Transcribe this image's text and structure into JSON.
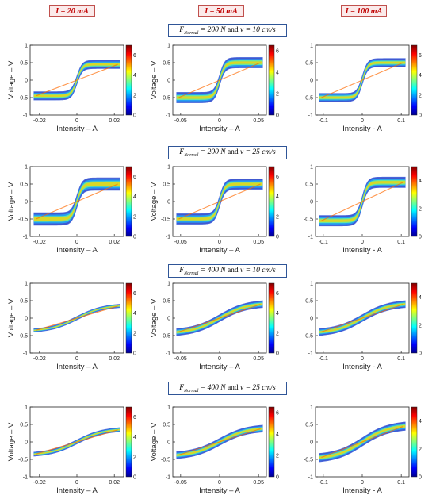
{
  "column_headers": [
    "I = 20 mA",
    "I = 50 mA",
    "I = 100 mA"
  ],
  "conditions": [
    {
      "label": "F",
      "sub": "Normal",
      "eq1": "= 200 N",
      "and": "and",
      "v_sym": "v",
      "eq2": "= 10 cm/s"
    },
    {
      "label": "F",
      "sub": "Normal",
      "eq1": "= 200 N",
      "and": "and",
      "v_sym": "v",
      "eq2": "= 25 cm/s"
    },
    {
      "label": "F",
      "sub": "Normal",
      "eq1": "= 400 N",
      "and": "and",
      "v_sym": "v",
      "eq2": "= 10 cm/s"
    },
    {
      "label": "F",
      "sub": "Normal",
      "eq1": "= 400 N",
      "and": "and",
      "v_sym": "v",
      "eq2": "= 25 cm/s"
    }
  ],
  "colors": {
    "header_border": "#c0504d",
    "header_text": "#c00000",
    "cond_border": "#2f5597"
  },
  "chart_data": [
    {
      "type": "heatmap",
      "row": 0,
      "col": 0,
      "xlabel": "Intensity – A",
      "ylabel": "Voltage – V",
      "xlim": [
        -0.025,
        0.025
      ],
      "ylim": [
        -1,
        1
      ],
      "xticks": [
        -0.02,
        0,
        0.02
      ],
      "xtick_labels": [
        "-0.02",
        "0",
        "0.02"
      ],
      "yticks": [
        -1,
        -0.5,
        0,
        0.5,
        1
      ],
      "ytick_labels": [
        "-1",
        "-0.5",
        "0",
        "0.5",
        "1"
      ],
      "colorbar": {
        "range": [
          0,
          7
        ],
        "ticks": [
          0,
          2,
          4,
          6
        ],
        "labels": [
          "0",
          "2",
          "4",
          "6"
        ]
      },
      "loop": {
        "slope": 8,
        "amp": 0.45,
        "hyst": 0.12
      }
    },
    {
      "type": "heatmap",
      "row": 0,
      "col": 1,
      "xlabel": "Intensity – A",
      "ylabel": "Voltage – V",
      "xlim": [
        -0.06,
        0.06
      ],
      "ylim": [
        -1,
        1
      ],
      "xticks": [
        -0.05,
        0,
        0.05
      ],
      "xtick_labels": [
        "-0.05",
        "0",
        "0.05"
      ],
      "yticks": [
        -1,
        -0.5,
        0,
        0.5,
        1
      ],
      "ytick_labels": [
        "-1",
        "-0.5",
        "0",
        "0.5",
        "1"
      ],
      "colorbar": {
        "range": [
          0,
          6.5
        ],
        "ticks": [
          0,
          2,
          4,
          6
        ],
        "labels": [
          "0",
          "2",
          "4",
          "6"
        ]
      },
      "loop": {
        "slope": 8,
        "amp": 0.5,
        "hyst": 0.15
      }
    },
    {
      "type": "heatmap",
      "row": 0,
      "col": 2,
      "xlabel": "Intensity - A",
      "ylabel": "",
      "xlim": [
        -0.12,
        0.12
      ],
      "ylim": [
        -1,
        1
      ],
      "xticks": [
        -0.1,
        0,
        0.1
      ],
      "xtick_labels": [
        "-0.1",
        "0",
        "0.1"
      ],
      "yticks": [
        -1,
        -0.5,
        0,
        0.5,
        1
      ],
      "ytick_labels": [
        "-1",
        "-0.5",
        "0",
        "0.5",
        "1"
      ],
      "colorbar": {
        "range": [
          0,
          7
        ],
        "ticks": [
          0,
          2,
          4,
          6
        ],
        "labels": [
          "0",
          "2",
          "4",
          "6"
        ]
      },
      "loop": {
        "slope": 8,
        "amp": 0.5,
        "hyst": 0.12
      }
    },
    {
      "type": "heatmap",
      "row": 1,
      "col": 0,
      "xlabel": "Intensity – A",
      "ylabel": "Voltage – V",
      "xlim": [
        -0.025,
        0.025
      ],
      "ylim": [
        -1,
        1
      ],
      "xticks": [
        -0.02,
        0,
        0.02
      ],
      "xtick_labels": [
        "-0.02",
        "0",
        "0.02"
      ],
      "yticks": [
        -1,
        -0.5,
        0,
        0.5,
        1
      ],
      "ytick_labels": [
        "-1",
        "-0.5",
        "0",
        "0.5",
        "1"
      ],
      "colorbar": {
        "range": [
          0,
          7
        ],
        "ticks": [
          0,
          2,
          4,
          6
        ],
        "labels": [
          "0",
          "2",
          "4",
          "6"
        ]
      },
      "loop": {
        "slope": 8,
        "amp": 0.5,
        "hyst": 0.18
      }
    },
    {
      "type": "heatmap",
      "row": 1,
      "col": 1,
      "xlabel": "Intensity – A",
      "ylabel": "Voltage – V",
      "xlim": [
        -0.06,
        0.06
      ],
      "ylim": [
        -1,
        1
      ],
      "xticks": [
        -0.05,
        0,
        0.05
      ],
      "xtick_labels": [
        "-0.05",
        "0",
        "0.05"
      ],
      "yticks": [
        -1,
        -0.5,
        0,
        0.5,
        1
      ],
      "ytick_labels": [
        "-1",
        "-0.5",
        "0",
        "0.5",
        "1"
      ],
      "colorbar": {
        "range": [
          0,
          7
        ],
        "ticks": [
          0,
          2,
          4,
          6
        ],
        "labels": [
          "0",
          "2",
          "4",
          "6"
        ]
      },
      "loop": {
        "slope": 8,
        "amp": 0.5,
        "hyst": 0.15
      }
    },
    {
      "type": "heatmap",
      "row": 1,
      "col": 2,
      "xlabel": "Intensity - A",
      "ylabel": "",
      "xlim": [
        -0.12,
        0.12
      ],
      "ylim": [
        -1,
        1
      ],
      "xticks": [
        -0.1,
        0,
        0.1
      ],
      "xtick_labels": [
        "-0.1",
        "0",
        "0.1"
      ],
      "yticks": [
        -1,
        -0.5,
        0,
        0.5,
        1
      ],
      "ytick_labels": [
        "-1",
        "-0.5",
        "0",
        "0.5",
        "1"
      ],
      "colorbar": {
        "range": [
          0,
          5
        ],
        "ticks": [
          0,
          2,
          4
        ],
        "labels": [
          "0",
          "2",
          "4"
        ]
      },
      "loop": {
        "slope": 8,
        "amp": 0.55,
        "hyst": 0.15
      }
    },
    {
      "type": "heatmap",
      "row": 2,
      "col": 0,
      "xlabel": "Intensity – A",
      "ylabel": "Voltage – V",
      "xlim": [
        -0.025,
        0.025
      ],
      "ylim": [
        -1,
        1
      ],
      "xticks": [
        -0.02,
        0,
        0.02
      ],
      "xtick_labels": [
        "-0.02",
        "0",
        "0.02"
      ],
      "yticks": [
        -1,
        -0.5,
        0,
        0.5,
        1
      ],
      "ytick_labels": [
        "-1",
        "-0.5",
        "0",
        "0.5",
        "1"
      ],
      "colorbar": {
        "range": [
          0,
          7
        ],
        "ticks": [
          0,
          2,
          4,
          6
        ],
        "labels": [
          "0",
          "2",
          "4",
          "6"
        ]
      },
      "loop": {
        "slope": 1.6,
        "amp": 0.35,
        "hyst": 0.05
      }
    },
    {
      "type": "heatmap",
      "row": 2,
      "col": 1,
      "xlabel": "Intensity – A",
      "ylabel": "Voltage – V",
      "xlim": [
        -0.06,
        0.06
      ],
      "ylim": [
        -1,
        1
      ],
      "xticks": [
        -0.05,
        0,
        0.05
      ],
      "xtick_labels": [
        "-0.05",
        "0",
        "0.05"
      ],
      "yticks": [
        -1,
        -0.5,
        0,
        0.5,
        1
      ],
      "ytick_labels": [
        "-1",
        "-0.5",
        "0",
        "0.5",
        "1"
      ],
      "colorbar": {
        "range": [
          0,
          7
        ],
        "ticks": [
          0,
          2,
          4,
          6
        ],
        "labels": [
          "0",
          "2",
          "4",
          "6"
        ]
      },
      "loop": {
        "slope": 1.6,
        "amp": 0.4,
        "hyst": 0.1
      }
    },
    {
      "type": "heatmap",
      "row": 2,
      "col": 2,
      "xlabel": "Intensity - A",
      "ylabel": "",
      "xlim": [
        -0.12,
        0.12
      ],
      "ylim": [
        -1,
        1
      ],
      "xticks": [
        -0.1,
        0,
        0.1
      ],
      "xtick_labels": [
        "-0.1",
        "0",
        "0.1"
      ],
      "yticks": [
        -1,
        -0.5,
        0,
        0.5,
        1
      ],
      "ytick_labels": [
        "-1",
        "-0.5",
        "0",
        "0.5",
        "1"
      ],
      "colorbar": {
        "range": [
          0,
          5
        ],
        "ticks": [
          0,
          2,
          4
        ],
        "labels": [
          "0",
          "2",
          "4"
        ]
      },
      "loop": {
        "slope": 1.6,
        "amp": 0.4,
        "hyst": 0.1
      }
    },
    {
      "type": "heatmap",
      "row": 3,
      "col": 0,
      "xlabel": "Intensity – A",
      "ylabel": "Voltage – V",
      "xlim": [
        -0.025,
        0.025
      ],
      "ylim": [
        -1,
        1
      ],
      "xticks": [
        -0.02,
        0,
        0.02
      ],
      "xtick_labels": [
        "-0.02",
        "0",
        "0.02"
      ],
      "yticks": [
        -1,
        -0.5,
        0,
        0.5,
        1
      ],
      "ytick_labels": [
        "-1",
        "-0.5",
        "0",
        "0.5",
        "1"
      ],
      "colorbar": {
        "range": [
          0,
          7
        ],
        "ticks": [
          0,
          2,
          4,
          6
        ],
        "labels": [
          "0",
          "2",
          "4",
          "6"
        ]
      },
      "loop": {
        "slope": 1.6,
        "amp": 0.35,
        "hyst": 0.06
      }
    },
    {
      "type": "heatmap",
      "row": 3,
      "col": 1,
      "xlabel": "Intensity – A",
      "ylabel": "Voltage – V",
      "xlim": [
        -0.06,
        0.06
      ],
      "ylim": [
        -1,
        1
      ],
      "xticks": [
        -0.05,
        0,
        0.05
      ],
      "xtick_labels": [
        "-0.05",
        "0",
        "0.05"
      ],
      "yticks": [
        -1,
        -0.5,
        0,
        0.5,
        1
      ],
      "ytick_labels": [
        "-1",
        "-0.5",
        "0",
        "0.5",
        "1"
      ],
      "colorbar": {
        "range": [
          0,
          6.5
        ],
        "ticks": [
          0,
          2,
          4,
          6
        ],
        "labels": [
          "0",
          "2",
          "4",
          "6"
        ]
      },
      "loop": {
        "slope": 1.6,
        "amp": 0.38,
        "hyst": 0.1
      }
    },
    {
      "type": "heatmap",
      "row": 3,
      "col": 2,
      "xlabel": "Intensity - A",
      "ylabel": "",
      "xlim": [
        -0.12,
        0.12
      ],
      "ylim": [
        -1,
        1
      ],
      "xticks": [
        -0.1,
        0,
        0.1
      ],
      "xtick_labels": [
        "-0.1",
        "0",
        "0.1"
      ],
      "yticks": [
        -1,
        -0.5,
        0,
        0.5,
        1
      ],
      "ytick_labels": [
        "-1",
        "-0.5",
        "0",
        "0.5",
        "1"
      ],
      "colorbar": {
        "range": [
          0,
          5
        ],
        "ticks": [
          0,
          2,
          4
        ],
        "labels": [
          "0",
          "2",
          "4"
        ]
      },
      "loop": {
        "slope": 1.6,
        "amp": 0.45,
        "hyst": 0.12
      }
    }
  ]
}
